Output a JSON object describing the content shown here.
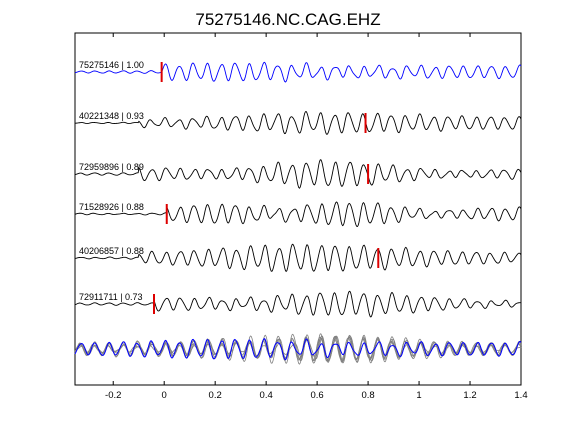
{
  "chart_data": {
    "type": "line",
    "title": "75275146.NC.CAG.EHZ",
    "xlabel": "",
    "ylabel": "",
    "xlim": [
      -0.35,
      1.4
    ],
    "x_ticks": [
      -0.2,
      0,
      0.2,
      0.4,
      0.6,
      0.8,
      1,
      1.2,
      1.4
    ],
    "x_tick_labels": [
      "-0.2",
      "0",
      "0.2",
      "0.4",
      "0.6",
      "0.8",
      "1",
      "1.2",
      "1.4"
    ],
    "grid": false,
    "series": [
      {
        "name": "75275146 | 1.00",
        "label": "75275146 | 1.00",
        "event_id": "75275146",
        "correlation": 1.0,
        "pick_time": -0.01,
        "color": "#0000ff",
        "seed": 3
      },
      {
        "name": "40221348 | 0.93",
        "label": "40221348 | 0.93",
        "event_id": "40221348",
        "correlation": 0.93,
        "pick_time": 0.79,
        "color": "#000000",
        "seed": 7
      },
      {
        "name": "72959896 | 0.89",
        "label": "72959896 | 0.89",
        "event_id": "72959896",
        "correlation": 0.89,
        "pick_time": 0.8,
        "color": "#000000",
        "seed": 11
      },
      {
        "name": "71528926 | 0.88",
        "label": "71528926 | 0.88",
        "event_id": "71528926",
        "correlation": 0.88,
        "pick_time": 0.01,
        "color": "#000000",
        "seed": 17
      },
      {
        "name": "40206857 | 0.88",
        "label": "40206857 | 0.88",
        "event_id": "40206857",
        "correlation": 0.88,
        "pick_time": 0.84,
        "color": "#000000",
        "seed": 23
      },
      {
        "name": "72911711 | 0.73",
        "label": "72911711 | 0.73",
        "event_id": "72911711",
        "correlation": 0.73,
        "pick_time": -0.04,
        "color": "#000000",
        "seed": 29
      }
    ],
    "stack": {
      "reference_color": "#0000ff",
      "overlay_color": "#808080"
    },
    "pick_color": "#dd0000"
  }
}
